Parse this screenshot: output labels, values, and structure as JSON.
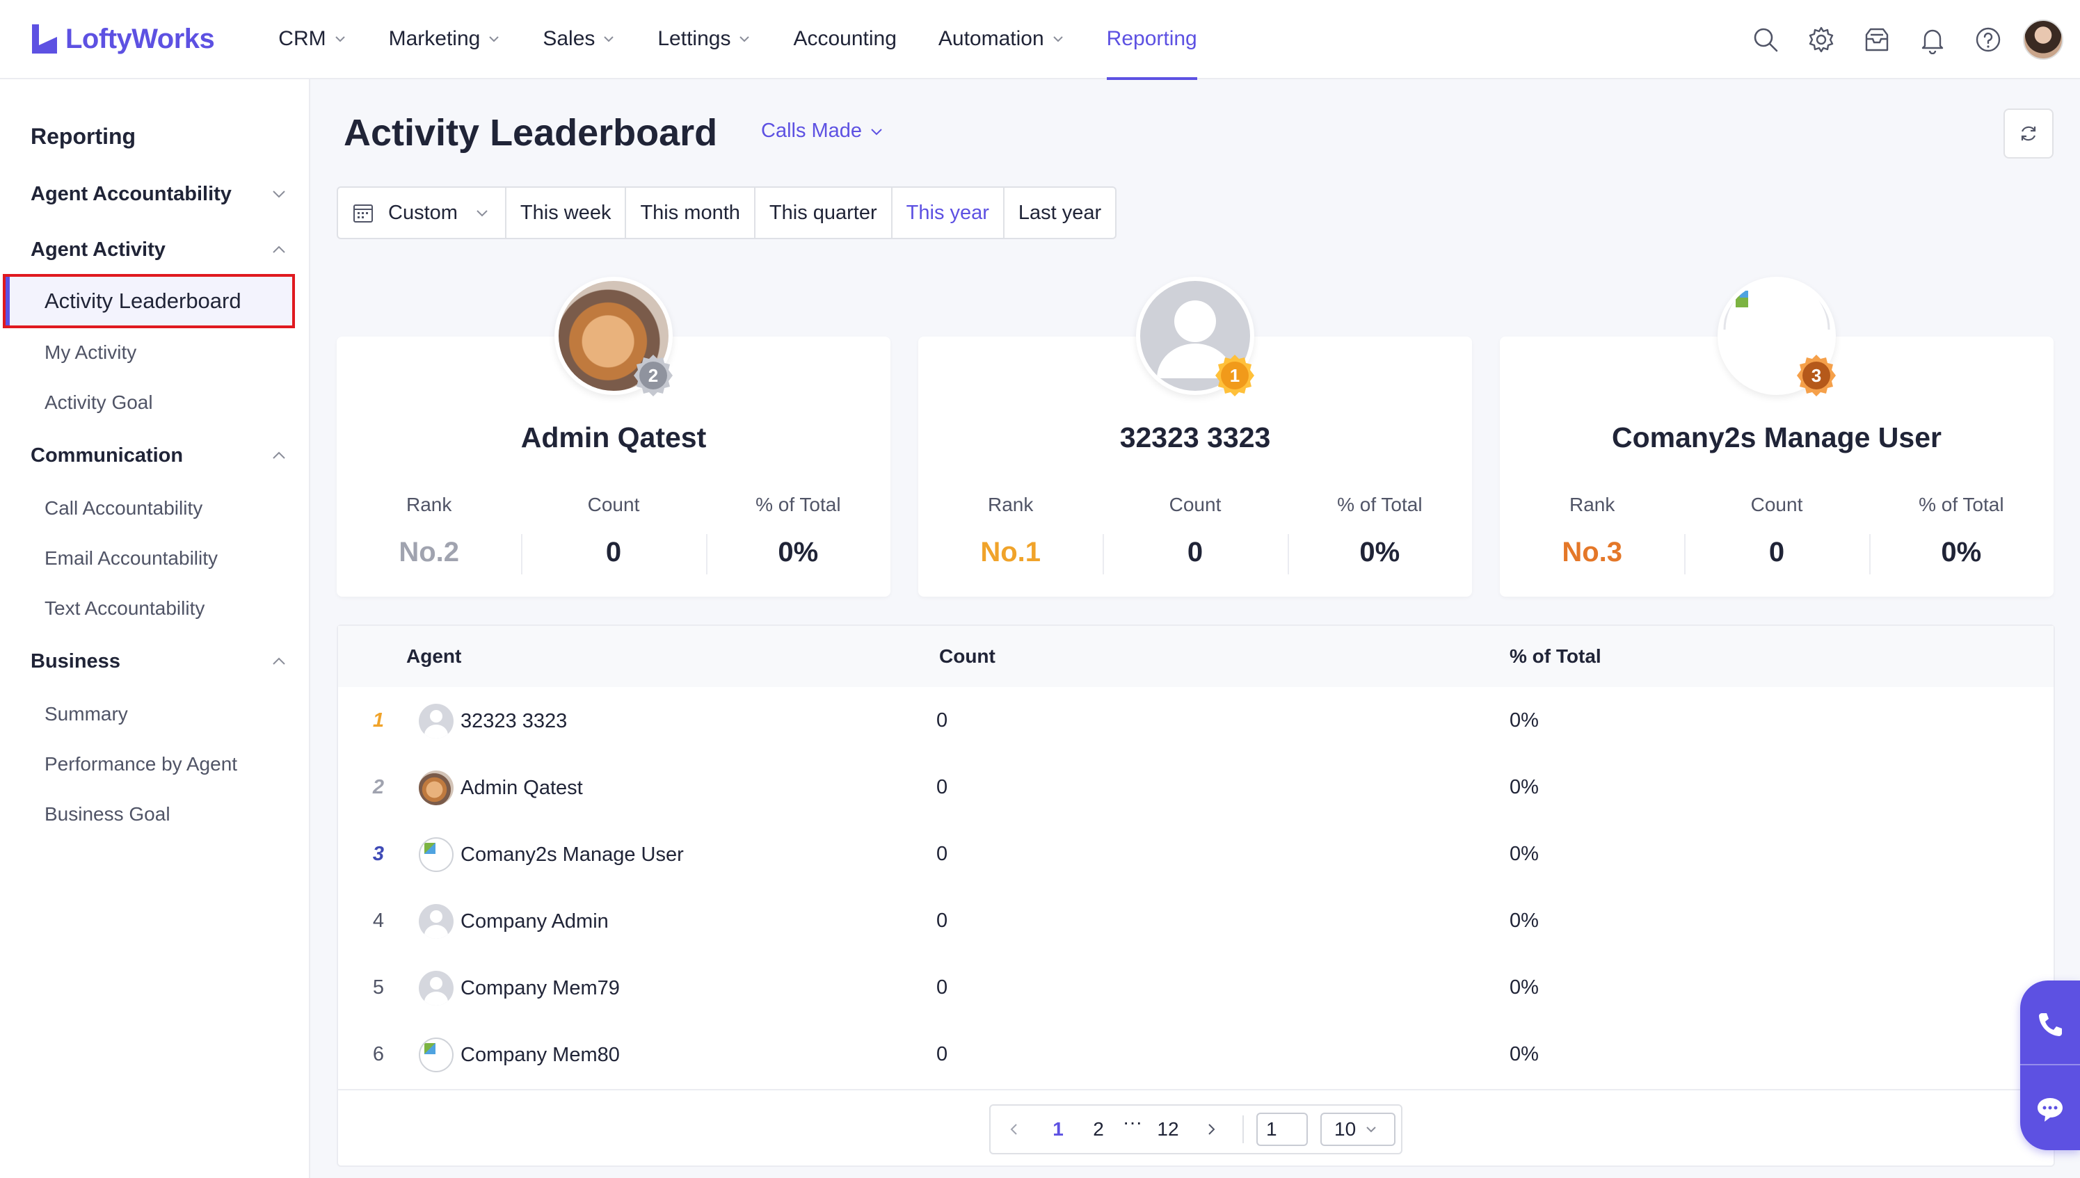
{
  "brand": {
    "name": "LoftyWorks",
    "color": "#5d51e2"
  },
  "nav": {
    "items": [
      {
        "label": "CRM",
        "has_dropdown": true
      },
      {
        "label": "Marketing",
        "has_dropdown": true
      },
      {
        "label": "Sales",
        "has_dropdown": true
      },
      {
        "label": "Lettings",
        "has_dropdown": true
      },
      {
        "label": "Accounting",
        "has_dropdown": false
      },
      {
        "label": "Automation",
        "has_dropdown": true
      },
      {
        "label": "Reporting",
        "has_dropdown": false,
        "active": true
      }
    ],
    "icons": [
      "search-icon",
      "settings-gear-icon",
      "inbox-icon",
      "bell-icon",
      "help-icon",
      "user-avatar"
    ]
  },
  "sidebar": {
    "title": "Reporting",
    "groups": [
      {
        "label": "Agent Accountability",
        "expanded": false,
        "items": []
      },
      {
        "label": "Agent Activity",
        "expanded": true,
        "items": [
          "Activity Leaderboard",
          "My Activity",
          "Activity Goal"
        ]
      },
      {
        "label": "Communication",
        "expanded": true,
        "items": [
          "Call Accountability",
          "Email Accountability",
          "Text Accountability"
        ]
      },
      {
        "label": "Business",
        "expanded": true,
        "items": [
          "Summary",
          "Performance by Agent",
          "Business Goal"
        ]
      }
    ],
    "active_item": "Activity Leaderboard"
  },
  "main": {
    "title": "Activity Leaderboard",
    "metric_select": "Calls Made",
    "ranges": [
      "Custom",
      "This week",
      "This month",
      "This quarter",
      "This year",
      "Last year"
    ],
    "selected_range": "This year",
    "stat_labels": {
      "rank": "Rank",
      "count": "Count",
      "pct": "% of Total"
    },
    "podium": [
      {
        "name": "Admin Qatest",
        "badge": "2",
        "rank": "No.2",
        "count": "0",
        "pct": "0%",
        "avatar": "bunny-photo"
      },
      {
        "name": "32323 3323",
        "badge": "1",
        "rank": "No.1",
        "count": "0",
        "pct": "0%",
        "avatar": "default-avatar"
      },
      {
        "name": "Comany2s Manage User",
        "badge": "3",
        "rank": "No.3",
        "count": "0",
        "pct": "0%",
        "avatar": "broken-image"
      }
    ],
    "table": {
      "headers": {
        "agent": "Agent",
        "count": "Count",
        "pct": "% of Total"
      },
      "rows": [
        {
          "rank": "1",
          "name": "32323 3323",
          "count": "0",
          "pct": "0%",
          "avatar": "default-avatar"
        },
        {
          "rank": "2",
          "name": "Admin Qatest",
          "count": "0",
          "pct": "0%",
          "avatar": "bunny-photo"
        },
        {
          "rank": "3",
          "name": "Comany2s Manage User",
          "count": "0",
          "pct": "0%",
          "avatar": "broken-image"
        },
        {
          "rank": "4",
          "name": "Company Admin",
          "count": "0",
          "pct": "0%",
          "avatar": "default-avatar"
        },
        {
          "rank": "5",
          "name": "Company Mem79",
          "count": "0",
          "pct": "0%",
          "avatar": "default-avatar"
        },
        {
          "rank": "6",
          "name": "Company Mem80",
          "count": "0",
          "pct": "0%",
          "avatar": "broken-image"
        }
      ]
    },
    "pagination": {
      "pages": [
        "1",
        "2",
        "···",
        "12"
      ],
      "current": "1",
      "jump_value": "1",
      "page_size": "10"
    }
  },
  "colors": {
    "accent": "#5d51e2",
    "gold": "#f0a32a",
    "silver": "#a0a3af",
    "bronze": "#e47728",
    "highlight_border": "#e0191f"
  }
}
